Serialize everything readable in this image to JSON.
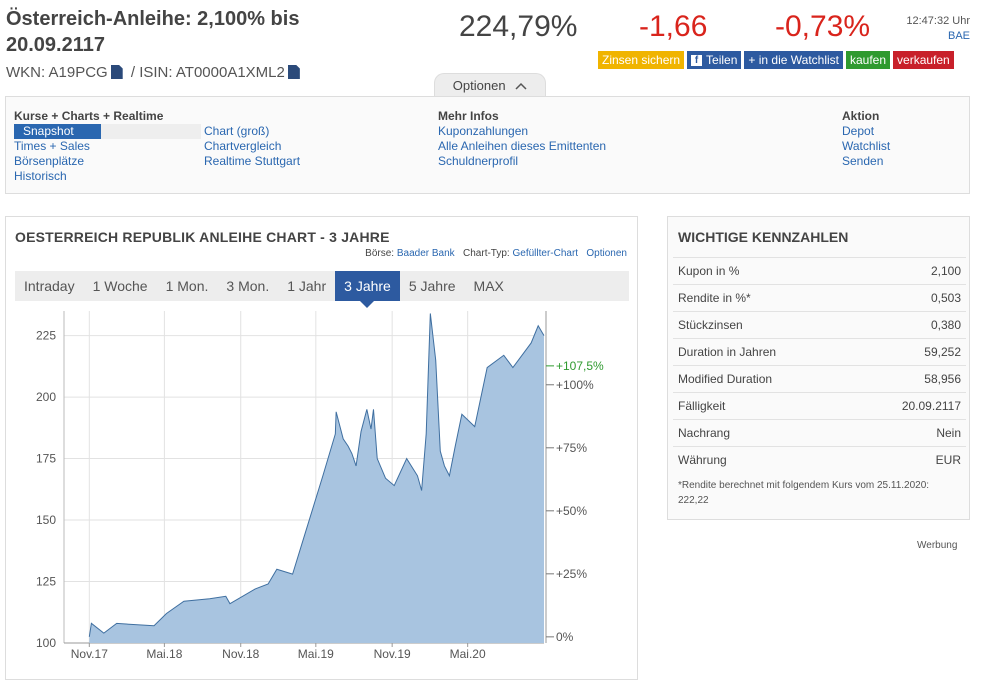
{
  "header": {
    "title": "Österreich-Anleihe: 2,100% bis 20.09.2117",
    "wkn_label": "WKN: A19PCG",
    "isin_label": "/ ISIN: AT0000A1XML2",
    "price": "224,79%",
    "change": "-1,66",
    "change_pct": "-0,73%",
    "time": "12:47:32 Uhr",
    "exchange": "BAE"
  },
  "actions": {
    "zinsen": "Zinsen sichern",
    "teilen": "Teilen",
    "watchlist": "+ in die Watchlist",
    "kaufen": "kaufen",
    "verkaufen": "verkaufen"
  },
  "options_tab": "Optionen",
  "nav": {
    "col1_heading": "Kurse + Charts + Realtime",
    "col1": [
      "Snapshot",
      "Times + Sales",
      "Börsenplätze",
      "Historisch"
    ],
    "col2": [
      "Chart (groß)",
      "Chartvergleich",
      "Realtime Stuttgart"
    ],
    "col3_heading": "Mehr Infos",
    "col3": [
      "Kuponzahlungen",
      "Alle Anleihen dieses Emittenten",
      "Schuldnerprofil"
    ],
    "col4_heading": "Aktion",
    "col4": [
      "Depot",
      "Watchlist",
      "Senden"
    ]
  },
  "chart_panel": {
    "title": "OESTERREICH REPUBLIK ANLEIHE CHART - 3 JAHRE",
    "boerse_label": "Börse:",
    "boerse": "Baader Bank",
    "charttyp_label": "Chart-Typ:",
    "charttyp": "Gefüllter-Chart",
    "optionen": "Optionen",
    "tabs": [
      "Intraday",
      "1 Woche",
      "1 Mon.",
      "3 Mon.",
      "1 Jahr",
      "3 Jahre",
      "5 Jahre",
      "MAX"
    ],
    "active_tab": "3 Jahre"
  },
  "chart_data": {
    "type": "area",
    "title": "OESTERREICH REPUBLIK ANLEIHE CHART - 3 JAHRE",
    "x_ticks": [
      "Nov.17",
      "Mai.18",
      "Nov.18",
      "Mai.19",
      "Nov.19",
      "Mai.20"
    ],
    "y_ticks": [
      100,
      125,
      150,
      175,
      200,
      225
    ],
    "ylim": [
      100,
      235
    ],
    "right_ticks": [
      "0%",
      "+25%",
      "+50%",
      "+75%",
      "+100%"
    ],
    "right_tick_values": [
      0,
      25,
      50,
      75,
      100
    ],
    "current_marker": "+107,5%",
    "current_marker_value": 107.5,
    "color_fill": "#a8c4e0",
    "color_line": "#3f6fa0",
    "color_marker": "#2f9a2f",
    "series": [
      {
        "x": [
          "2017-11-15",
          "2017-11-20",
          "2017-12-20",
          "2018-01-20",
          "2018-03-01",
          "2018-04-20",
          "2018-05-20",
          "2018-07-01",
          "2018-09-01",
          "2018-10-10",
          "2018-10-20",
          "2018-12-20",
          "2019-01-20",
          "2019-02-10",
          "2019-03-20",
          "2019-04-20",
          "2019-06-01",
          "2019-07-01",
          "2019-07-03",
          "2019-07-20",
          "2019-08-01",
          "2019-08-10",
          "2019-08-20",
          "2019-09-01",
          "2019-09-15",
          "2019-09-25",
          "2019-10-01",
          "2019-10-10",
          "2019-10-30",
          "2019-11-20",
          "2019-12-20",
          "2020-01-15",
          "2020-01-25",
          "2020-02-05",
          "2020-02-15",
          "2020-02-28",
          "2020-03-10",
          "2020-03-20",
          "2020-04-01",
          "2020-04-15",
          "2020-05-01",
          "2020-06-01",
          "2020-07-01",
          "2020-08-10",
          "2020-09-01",
          "2020-10-15",
          "2020-11-01",
          "2020-11-15"
        ],
        "y": [
          102.5,
          108,
          104,
          108,
          107.5,
          107,
          112,
          117,
          118,
          119,
          116,
          122,
          124,
          130,
          128,
          145,
          168,
          185,
          194,
          183,
          180,
          177,
          172,
          186,
          195,
          187,
          195,
          175,
          167,
          164,
          175,
          168,
          162,
          185,
          234,
          215,
          178,
          172,
          168,
          180,
          193,
          188,
          212,
          217,
          212,
          222,
          229,
          225
        ]
      }
    ]
  },
  "key_figures": {
    "title": "WICHTIGE KENNZAHLEN",
    "rows": [
      {
        "label": "Kupon in %",
        "value": "2,100"
      },
      {
        "label": "Rendite in %*",
        "value": "0,503"
      },
      {
        "label": "Stückzinsen",
        "value": "0,380"
      },
      {
        "label": "Duration in Jahren",
        "value": "59,252"
      },
      {
        "label": "Modified Duration",
        "value": "58,956"
      },
      {
        "label": "Fälligkeit",
        "value": "20.09.2117"
      },
      {
        "label": "Nachrang",
        "value": "Nein"
      },
      {
        "label": "Währung",
        "value": "EUR"
      }
    ],
    "note": "*Rendite berechnet mit folgendem Kurs vom 25.11.2020: 222,22"
  },
  "ad_label": "Werbung"
}
